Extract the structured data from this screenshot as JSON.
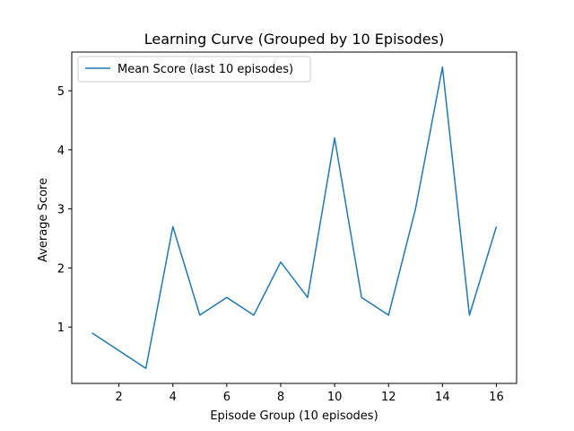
{
  "chart_data": {
    "type": "line",
    "title": "Learning Curve (Grouped by 10 Episodes)",
    "xlabel": "Episode Group (10 episodes)",
    "ylabel": "Average Score",
    "xlim": [
      0.25,
      16.75
    ],
    "ylim": [
      0.045,
      5.655
    ],
    "xticks": [
      2,
      4,
      6,
      8,
      10,
      12,
      14,
      16
    ],
    "yticks": [
      1,
      2,
      3,
      4,
      5
    ],
    "grid": false,
    "legend_position": "top-left",
    "series": [
      {
        "name": "Mean Score (last 10 episodes)",
        "color": "#1f77b4",
        "x": [
          1,
          2,
          3,
          4,
          5,
          6,
          7,
          8,
          9,
          10,
          11,
          12,
          13,
          14,
          15,
          16
        ],
        "y": [
          0.9,
          0.6,
          0.3,
          2.7,
          1.2,
          1.5,
          1.2,
          2.1,
          1.5,
          4.2,
          1.5,
          1.2,
          3.0,
          5.4,
          1.2,
          2.7
        ]
      }
    ]
  }
}
